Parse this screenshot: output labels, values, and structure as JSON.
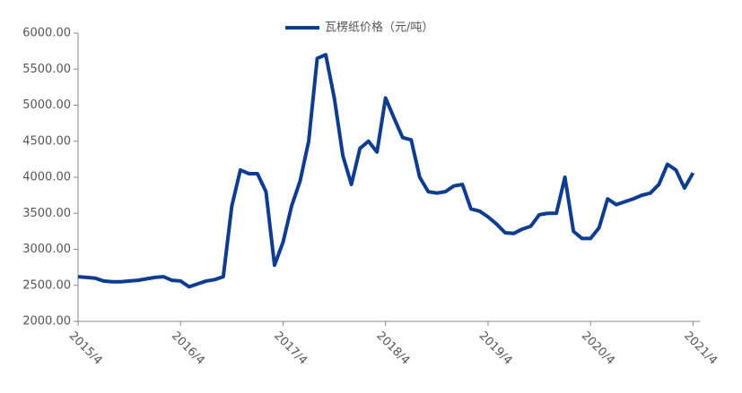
{
  "chart_data": {
    "type": "line",
    "x": [
      "2015/4",
      "2015/5",
      "2015/6",
      "2015/7",
      "2015/8",
      "2015/9",
      "2015/10",
      "2015/11",
      "2015/12",
      "2016/1",
      "2016/2",
      "2016/3",
      "2016/4",
      "2016/5",
      "2016/6",
      "2016/7",
      "2016/8",
      "2016/9",
      "2016/10",
      "2016/11",
      "2016/12",
      "2017/1",
      "2017/2",
      "2017/3",
      "2017/4",
      "2017/5",
      "2017/6",
      "2017/7",
      "2017/8",
      "2017/9",
      "2017/10",
      "2017/11",
      "2017/12",
      "2018/1",
      "2018/2",
      "2018/3",
      "2018/4",
      "2018/5",
      "2018/6",
      "2018/7",
      "2018/8",
      "2018/9",
      "2018/10",
      "2018/11",
      "2018/12",
      "2019/1",
      "2019/2",
      "2019/3",
      "2019/4",
      "2019/5",
      "2019/6",
      "2019/7",
      "2019/8",
      "2019/9",
      "2019/10",
      "2019/11",
      "2019/12",
      "2020/1",
      "2020/2",
      "2020/3",
      "2020/4",
      "2020/5",
      "2020/6",
      "2020/7",
      "2020/8",
      "2020/9",
      "2020/10",
      "2020/11",
      "2020/12",
      "2021/1",
      "2021/2",
      "2021/3",
      "2021/4"
    ],
    "series": [
      {
        "name": "瓦楞纸价格（元/吨）",
        "color": "#0e3d8f",
        "values": [
          2620,
          2610,
          2600,
          2560,
          2550,
          2550,
          2560,
          2570,
          2590,
          2610,
          2620,
          2570,
          2560,
          2480,
          2520,
          2560,
          2580,
          2620,
          3600,
          4100,
          4050,
          4050,
          3800,
          2780,
          3100,
          3600,
          3950,
          4500,
          5650,
          5700,
          5100,
          4300,
          3900,
          4400,
          4500,
          4350,
          5100,
          4820,
          4550,
          4520,
          4000,
          3800,
          3780,
          3800,
          3880,
          3900,
          3560,
          3530,
          3450,
          3350,
          3230,
          3220,
          3280,
          3320,
          3480,
          3500,
          3500,
          4000,
          3250,
          3150,
          3150,
          3300,
          3700,
          3620,
          3660,
          3700,
          3750,
          3780,
          3900,
          4180,
          4100,
          3850,
          4060
        ]
      }
    ],
    "ylim": [
      2000,
      6000
    ],
    "yticks": [
      {
        "value": 2000,
        "label": "2000.00"
      },
      {
        "value": 2500,
        "label": "2500.00"
      },
      {
        "value": 3000,
        "label": "3000.00"
      },
      {
        "value": 3500,
        "label": "3500.00"
      },
      {
        "value": 4000,
        "label": "4000.00"
      },
      {
        "value": 4500,
        "label": "4500.00"
      },
      {
        "value": 5000,
        "label": "5000.00"
      },
      {
        "value": 5500,
        "label": "5500.00"
      },
      {
        "value": 6000,
        "label": "6000.00"
      }
    ],
    "xticks": [
      "2015/4",
      "2016/4",
      "2017/4",
      "2018/4",
      "2019/4",
      "2020/4",
      "2021/4"
    ],
    "legend": "top"
  }
}
